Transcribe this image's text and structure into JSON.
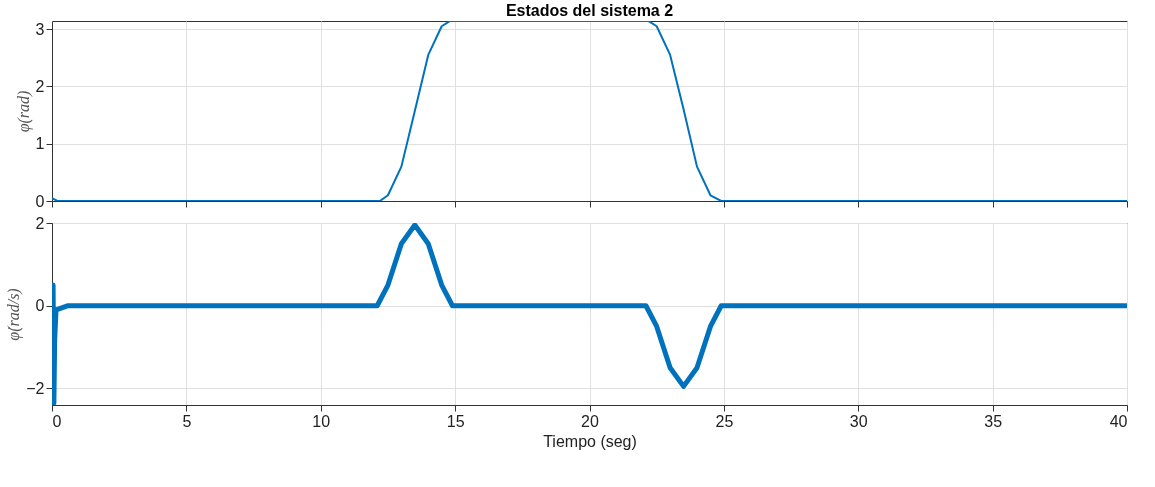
{
  "chart_data": [
    {
      "type": "line",
      "title": "Estados del sistema 2",
      "ylabel": "φ(rad)",
      "tick_labels": "y",
      "grid": true,
      "xlim": [
        0,
        40
      ],
      "xticks": [
        0,
        5,
        10,
        15,
        20,
        25,
        30,
        35,
        40
      ],
      "ylim": [
        0,
        3.1416
      ],
      "yticks": [
        0,
        1,
        2,
        3
      ],
      "series": [
        {
          "color": "#0072bd",
          "x": [
            0,
            0.2,
            12.2,
            12.5,
            13,
            13.5,
            14,
            14.5,
            14.8,
            22.2,
            22.5,
            23,
            23.5,
            24,
            24.5,
            24.9,
            40
          ],
          "values": [
            0.05,
            0,
            0,
            0.1,
            0.6,
            1.57,
            2.55,
            3.05,
            3.14,
            3.14,
            3.05,
            2.55,
            1.6,
            0.6,
            0.1,
            0,
            0
          ]
        }
      ]
    },
    {
      "type": "line",
      "xlabel": "Tiempo (seg)",
      "ylabel": "φ̇(rad/s)",
      "grid": true,
      "xlim": [
        0,
        40
      ],
      "xticks": [
        0,
        5,
        10,
        15,
        20,
        25,
        30,
        35,
        40
      ],
      "ylim": [
        -2.4,
        2
      ],
      "yticks": [
        -2,
        0,
        2
      ],
      "series": [
        {
          "color": "#0072bd",
          "x": [
            0,
            0.04,
            0.07,
            0.1,
            0.15,
            0.6,
            12.1,
            12.5,
            13,
            13.5,
            14,
            14.5,
            14.9,
            22.1,
            22.5,
            23,
            23.5,
            24,
            24.5,
            24.9,
            40
          ],
          "values": [
            0,
            0.5,
            -2.35,
            -0.8,
            -0.1,
            0,
            0,
            0.5,
            1.5,
            1.95,
            1.5,
            0.5,
            0,
            0,
            -0.5,
            -1.5,
            -1.95,
            -1.5,
            -0.5,
            0,
            0
          ]
        }
      ]
    }
  ]
}
